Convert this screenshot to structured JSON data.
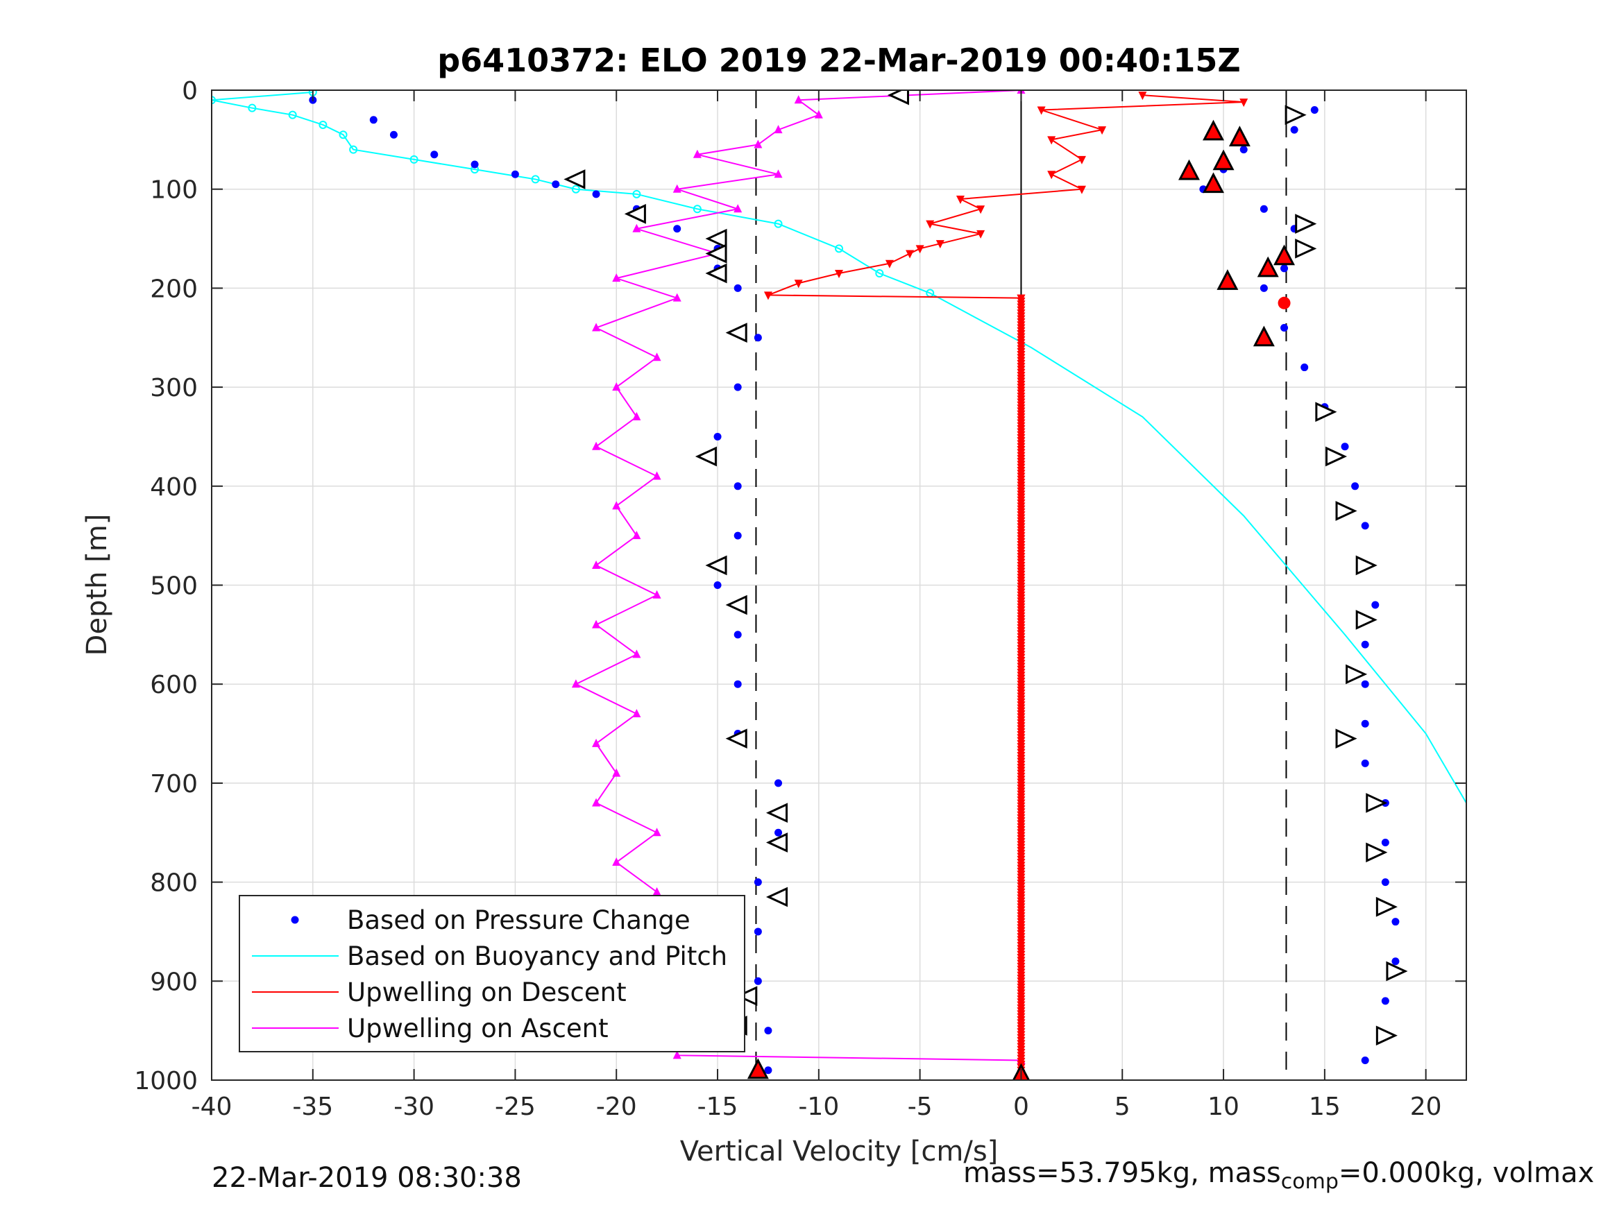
{
  "chart_data": {
    "type": "scatter",
    "title": "p6410372: ELO 2019 22-Mar-2019 00:40:15Z",
    "xlabel": "Vertical Velocity [cm/s]",
    "ylabel": "Depth [m]",
    "xlim": [
      -40,
      22
    ],
    "ylim": [
      0,
      1000
    ],
    "y_reversed": true,
    "grid": true,
    "x_ticks": [
      -40,
      -35,
      -30,
      -25,
      -20,
      -15,
      -10,
      -5,
      0,
      5,
      10,
      15,
      20
    ],
    "y_ticks": [
      0,
      100,
      200,
      300,
      400,
      500,
      600,
      700,
      800,
      900,
      1000
    ],
    "x_tick_labels": [
      "-40",
      "-35",
      "-30",
      "-25",
      "-20",
      "-15",
      "-10",
      "-5",
      "0",
      "5",
      "10",
      "15",
      "20"
    ],
    "y_tick_labels": [
      "0",
      "100",
      "200",
      "300",
      "400",
      "500",
      "600",
      "700",
      "800",
      "900",
      "1000"
    ],
    "legend_position": "bottom-left",
    "legend": [
      {
        "label": "Based on Pressure Change",
        "color": "#0000ff",
        "style": "dot"
      },
      {
        "label": "Based on Buoyancy and Pitch",
        "color": "#00ffff",
        "style": "line"
      },
      {
        "label": "Upwelling on Descent",
        "color": "#ff0000",
        "style": "line"
      },
      {
        "label": "Upwelling on Ascent",
        "color": "#ff00ff",
        "style": "line"
      }
    ],
    "reference_lines_x": [
      -13.1,
      13.1,
      0
    ],
    "series": [
      {
        "name": "Based on Pressure Change",
        "color": "#0000ff",
        "descent": {
          "x": [
            -35,
            -32,
            -31,
            -29,
            -27,
            -25,
            -23,
            -21,
            -19,
            -17,
            -15,
            -15,
            -14,
            -13,
            -14,
            -15,
            -14,
            -14,
            -15,
            -14,
            -14,
            -14,
            -12,
            -12,
            -13,
            -13,
            -13,
            -12.5,
            -12.5
          ],
          "y": [
            10,
            30,
            45,
            65,
            75,
            85,
            95,
            105,
            120,
            140,
            160,
            180,
            200,
            250,
            300,
            350,
            400,
            450,
            500,
            550,
            600,
            650,
            700,
            750,
            800,
            850,
            900,
            950,
            990
          ]
        },
        "ascent": {
          "x": [
            14.5,
            13.5,
            11,
            10,
            9,
            12,
            13.5,
            14,
            13,
            12,
            13,
            14,
            15,
            16,
            16.5,
            17,
            17,
            17.5,
            17,
            17,
            17,
            17,
            18,
            18,
            18,
            18.5,
            18.5,
            18,
            17
          ],
          "y": [
            20,
            40,
            60,
            80,
            100,
            120,
            140,
            160,
            180,
            200,
            240,
            280,
            320,
            360,
            400,
            440,
            480,
            520,
            560,
            600,
            640,
            680,
            720,
            760,
            800,
            840,
            880,
            920,
            980
          ]
        }
      },
      {
        "name": "Based on Buoyancy and Pitch",
        "color": "#00ffff",
        "x": [
          -35,
          -40,
          -38,
          -36,
          -34.5,
          -33.5,
          -33,
          -30,
          -27,
          -24,
          -22,
          -19,
          -16,
          -12,
          -9,
          -7,
          -4.5,
          0.5,
          6,
          11,
          16,
          20,
          22
        ],
        "y": [
          2,
          10,
          18,
          25,
          35,
          45,
          60,
          70,
          80,
          90,
          100,
          105,
          120,
          135,
          160,
          185,
          205,
          260,
          330,
          430,
          550,
          650,
          720
        ]
      },
      {
        "name": "Upwelling on Descent",
        "color": "#ff0000",
        "x": [
          6,
          11,
          1,
          4,
          1.5,
          3,
          1.5,
          3,
          -3,
          -2,
          -4.5,
          -2,
          -4,
          -5,
          -5.5,
          -6.5,
          -9,
          -11,
          -12.5,
          0,
          0
        ],
        "y": [
          5,
          12,
          20,
          40,
          50,
          70,
          85,
          100,
          110,
          120,
          135,
          145,
          155,
          160,
          165,
          175,
          185,
          195,
          207,
          210,
          1000
        ]
      },
      {
        "name": "Upwelling on Ascent",
        "color": "#ff00ff",
        "x": [
          0,
          -11,
          -10,
          -12,
          -13,
          -16,
          -12,
          -17,
          -14,
          -19,
          -15,
          -20,
          -17,
          -21,
          -18,
          -20,
          -19,
          -21,
          -18,
          -20,
          -19,
          -21,
          -18,
          -21,
          -19,
          -22,
          -19,
          -21,
          -20,
          -21,
          -18,
          -20,
          -18,
          -20,
          -17,
          -17,
          0
        ],
        "y": [
          0,
          10,
          25,
          40,
          55,
          65,
          85,
          100,
          120,
          140,
          165,
          190,
          210,
          240,
          270,
          300,
          330,
          360,
          390,
          420,
          450,
          480,
          510,
          540,
          570,
          600,
          630,
          660,
          690,
          720,
          750,
          780,
          810,
          850,
          900,
          975,
          980
        ]
      }
    ],
    "markers": {
      "white_triangles_descent": {
        "x": [
          -6,
          -22,
          -19,
          -15,
          -15,
          -15,
          -14,
          -15.5,
          -15,
          -14,
          -14,
          -12,
          -12,
          -12,
          -13.5,
          -14
        ],
        "y": [
          5,
          90,
          125,
          150,
          165,
          185,
          245,
          370,
          480,
          520,
          655,
          730,
          760,
          815,
          915,
          945
        ]
      },
      "white_triangles_ascent": {
        "x": [
          13.5,
          14,
          14,
          15,
          15.5,
          16,
          17,
          17,
          16.5,
          16,
          17.5,
          17.5,
          18,
          18.5,
          18
        ],
        "y": [
          25,
          135,
          160,
          325,
          370,
          425,
          480,
          535,
          590,
          655,
          720,
          770,
          825,
          890,
          955
        ]
      },
      "red_triangles": {
        "x": [
          9.5,
          10.8,
          10,
          8.3,
          9.5,
          13,
          12.2,
          10.2,
          12,
          -13,
          0
        ],
        "y": [
          42,
          48,
          72,
          82,
          95,
          168,
          180,
          193,
          250,
          990,
          995
        ]
      },
      "red_dot": {
        "x": [
          13
        ],
        "y": [
          215
        ]
      }
    }
  },
  "footer": {
    "timestamp": "22-Mar-2019 08:30:38",
    "mass_text": "mass=53.795kg, mass",
    "mass_sub": "comp",
    "mass_tail": "=0.000kg, volmax"
  }
}
